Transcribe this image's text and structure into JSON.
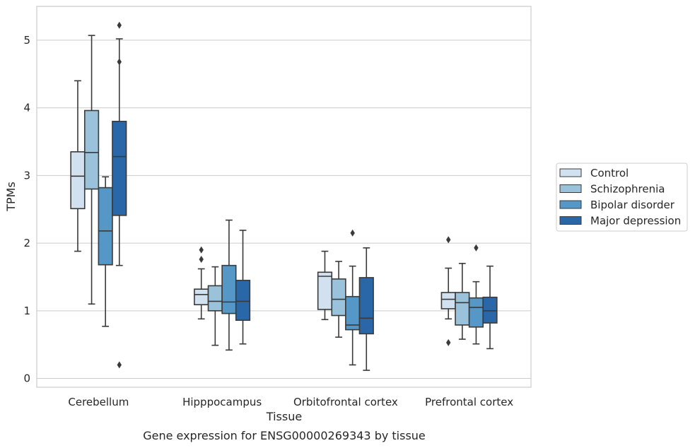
{
  "chart_data": {
    "type": "box",
    "xlabel": "Tissue",
    "ylabel": "TPMs",
    "caption": "Gene expression for ENSG00000269343 by tissue",
    "ylim": [
      -0.13,
      5.5
    ],
    "yticks": [
      0,
      1,
      2,
      3,
      4,
      5
    ],
    "grid": true,
    "legend_position": "right",
    "categories": [
      "Cerebellum",
      "Hipppocampus",
      "Orbitofrontal cortex",
      "Prefrontal cortex"
    ],
    "series": [
      {
        "name": "Control",
        "color": "#d1e1f0",
        "boxes": [
          {
            "whislo": 1.88,
            "q1": 2.51,
            "med": 2.99,
            "q3": 3.35,
            "whishi": 4.4,
            "fliers": []
          },
          {
            "whislo": 0.88,
            "q1": 1.09,
            "med": 1.24,
            "q3": 1.32,
            "whishi": 1.62,
            "fliers": [
              1.76,
              1.9
            ]
          },
          {
            "whislo": 0.87,
            "q1": 1.02,
            "med": 1.51,
            "q3": 1.57,
            "whishi": 1.88,
            "fliers": []
          },
          {
            "whislo": 0.88,
            "q1": 1.03,
            "med": 1.17,
            "q3": 1.27,
            "whishi": 1.63,
            "fliers": [
              0.53,
              2.05
            ]
          }
        ]
      },
      {
        "name": "Schizophrenia",
        "color": "#9ac2da",
        "boxes": [
          {
            "whislo": 1.1,
            "q1": 2.8,
            "med": 3.34,
            "q3": 3.96,
            "whishi": 5.07,
            "fliers": []
          },
          {
            "whislo": 0.49,
            "q1": 1.0,
            "med": 1.14,
            "q3": 1.37,
            "whishi": 1.65,
            "fliers": []
          },
          {
            "whislo": 0.61,
            "q1": 0.93,
            "med": 1.17,
            "q3": 1.47,
            "whishi": 1.73,
            "fliers": []
          },
          {
            "whislo": 0.58,
            "q1": 0.79,
            "med": 1.12,
            "q3": 1.27,
            "whishi": 1.7,
            "fliers": []
          }
        ]
      },
      {
        "name": "Bipolar disorder",
        "color": "#5597c6",
        "boxes": [
          {
            "whislo": 0.77,
            "q1": 1.68,
            "med": 2.18,
            "q3": 2.82,
            "whishi": 2.98,
            "fliers": []
          },
          {
            "whislo": 0.42,
            "q1": 0.96,
            "med": 1.13,
            "q3": 1.67,
            "whishi": 2.34,
            "fliers": []
          },
          {
            "whislo": 0.2,
            "q1": 0.72,
            "med": 0.79,
            "q3": 1.21,
            "whishi": 1.66,
            "fliers": [
              2.15
            ]
          },
          {
            "whislo": 0.51,
            "q1": 0.76,
            "med": 1.05,
            "q3": 1.19,
            "whishi": 1.43,
            "fliers": [
              1.93
            ]
          }
        ]
      },
      {
        "name": "Major depression",
        "color": "#2a67a8",
        "boxes": [
          {
            "whislo": 1.67,
            "q1": 2.41,
            "med": 3.28,
            "q3": 3.8,
            "whishi": 5.02,
            "fliers": [
              0.2,
              4.68,
              5.22
            ]
          },
          {
            "whislo": 0.51,
            "q1": 0.86,
            "med": 1.14,
            "q3": 1.45,
            "whishi": 2.19,
            "fliers": []
          },
          {
            "whislo": 0.12,
            "q1": 0.66,
            "med": 0.89,
            "q3": 1.49,
            "whishi": 1.93,
            "fliers": []
          },
          {
            "whislo": 0.44,
            "q1": 0.82,
            "med": 1.0,
            "q3": 1.2,
            "whishi": 1.66,
            "fliers": []
          }
        ]
      }
    ]
  }
}
